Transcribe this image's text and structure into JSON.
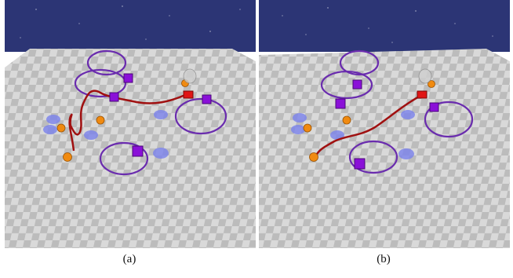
{
  "figure": {
    "panels": [
      {
        "caption": "(a)"
      },
      {
        "caption": "(b)"
      }
    ]
  },
  "colors": {
    "sky": "#2c3575",
    "floor_light": "#d9d9d9",
    "floor_dark": "#bcbcbc",
    "orbit_path": "#6a2cae",
    "robot_path": "#a01010",
    "cube": "#8a10d8",
    "ball": "#f08a10",
    "goal_disc": "#7b82ec",
    "robot": "#e01515"
  },
  "icons": {
    "moving_obstacle": "purple-cube-icon",
    "static_obstacle": "orange-ball-icon",
    "goal_zone": "blue-disc-icon",
    "agent": "red-robot-icon"
  }
}
